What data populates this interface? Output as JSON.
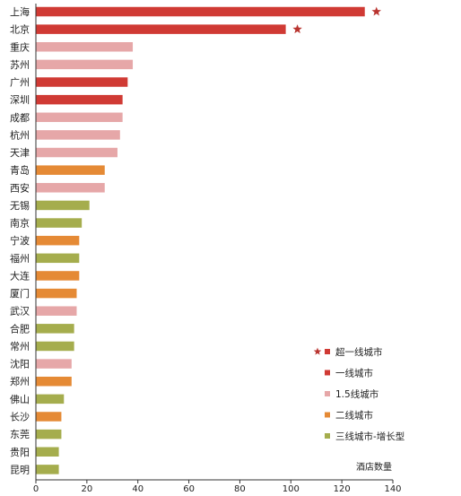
{
  "chart_data": {
    "type": "bar",
    "orientation": "horizontal",
    "xlabel": "酒店数量",
    "xlim": [
      0,
      140
    ],
    "xticks": [
      0,
      20,
      40,
      60,
      80,
      100,
      120,
      140
    ],
    "grid": false,
    "legend_position": "bottom-right",
    "categories": [
      "上海",
      "北京",
      "重庆",
      "苏州",
      "广州",
      "深圳",
      "成都",
      "杭州",
      "天津",
      "青岛",
      "西安",
      "无锡",
      "南京",
      "宁波",
      "福州",
      "大连",
      "厦门",
      "武汉",
      "合肥",
      "常州",
      "沈阳",
      "郑州",
      "佛山",
      "长沙",
      "东莞",
      "贵阳",
      "昆明"
    ],
    "values": [
      129,
      98,
      38,
      38,
      36,
      34,
      34,
      33,
      32,
      27,
      27,
      21,
      18,
      17,
      17,
      17,
      16,
      16,
      15,
      15,
      14,
      14,
      11,
      10,
      10,
      9,
      9
    ],
    "tiers": [
      0,
      0,
      2,
      2,
      1,
      1,
      2,
      2,
      2,
      3,
      2,
      4,
      4,
      3,
      4,
      3,
      3,
      2,
      4,
      4,
      2,
      3,
      4,
      3,
      4,
      4,
      4
    ],
    "starred": [
      true,
      true,
      false,
      false,
      false,
      false,
      false,
      false,
      false,
      false,
      false,
      false,
      false,
      false,
      false,
      false,
      false,
      false,
      false,
      false,
      false,
      false,
      false,
      false,
      false,
      false,
      false
    ],
    "series": [
      {
        "name": "超一线城市",
        "color": "#d03a34",
        "marker": "star"
      },
      {
        "name": "一线城市",
        "color": "#d03a34",
        "marker": "square"
      },
      {
        "name": "1.5线城市",
        "color": "#e6a7a8",
        "marker": "square"
      },
      {
        "name": "二线城市",
        "color": "#e58a35",
        "marker": "square"
      },
      {
        "name": "三线城市-增长型",
        "color": "#a5ad4d",
        "marker": "square"
      }
    ],
    "star_color": "#b9342f"
  }
}
